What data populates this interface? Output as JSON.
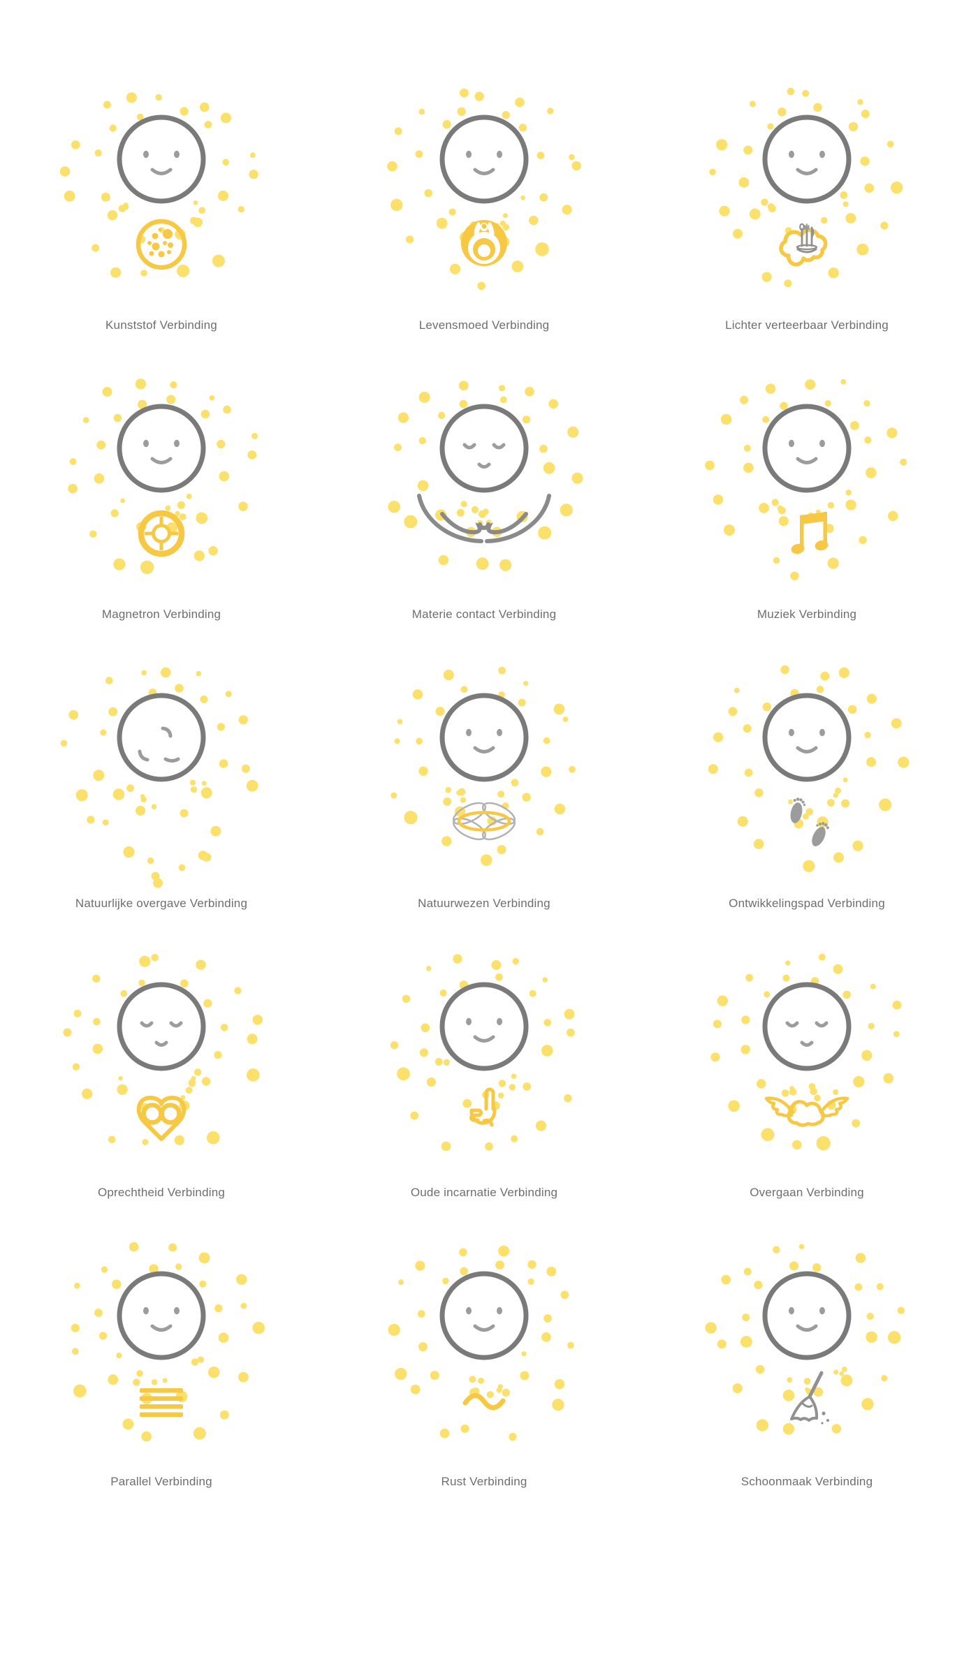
{
  "page": {
    "background": "#ffffff"
  },
  "colors": {
    "dot_yellow": "#FBE06C",
    "glyph_yellow": "#F7C844",
    "face_stroke_gray": "#7a7a7a",
    "feature_gray": "#9c9c9c",
    "glyph_gray": "#919191",
    "arms_gray": "#8a8a8a",
    "label_gray": "#6e6e6e"
  },
  "grid": {
    "columns": 3,
    "rows": 5
  },
  "items": [
    {
      "label": "Kunststof Verbinding",
      "face": "open",
      "glyph": "cookie-icon"
    },
    {
      "label": "Levensmoed Verbinding",
      "face": "open",
      "glyph": "bass-drop-icon"
    },
    {
      "label": "Lichter verteerbaar Verbinding",
      "face": "open",
      "glyph": "cloud-cutlery-icon"
    },
    {
      "label": "Magnetron Verbinding",
      "face": "open",
      "glyph": "ring-icon"
    },
    {
      "label": "Materie contact Verbinding",
      "face": "closed",
      "glyph": "cradling-arms-icon"
    },
    {
      "label": "Muziek Verbinding",
      "face": "open",
      "glyph": "music-note-icon"
    },
    {
      "label": "Natuurlijke overgave Verbinding",
      "face": "tilted",
      "glyph": "none"
    },
    {
      "label": "Natuurwezen Verbinding",
      "face": "open",
      "glyph": "butterfly-icon"
    },
    {
      "label": "Ontwikkelingspad Verbinding",
      "face": "open",
      "glyph": "footprints-icon"
    },
    {
      "label": "Oprechtheid Verbinding",
      "face": "closed",
      "glyph": "heart-infinity-icon"
    },
    {
      "label": "Oude incarnatie Verbinding",
      "face": "open",
      "glyph": "pointing-hand-icon"
    },
    {
      "label": "Overgaan Verbinding",
      "face": "closed",
      "glyph": "winged-cloud-icon"
    },
    {
      "label": "Parallel Verbinding",
      "face": "open",
      "glyph": "parallel-lines-icon"
    },
    {
      "label": "Rust Verbinding",
      "face": "open",
      "glyph": "wave-icon"
    },
    {
      "label": "Schoonmaak Verbinding",
      "face": "open",
      "glyph": "broom-icon"
    }
  ]
}
